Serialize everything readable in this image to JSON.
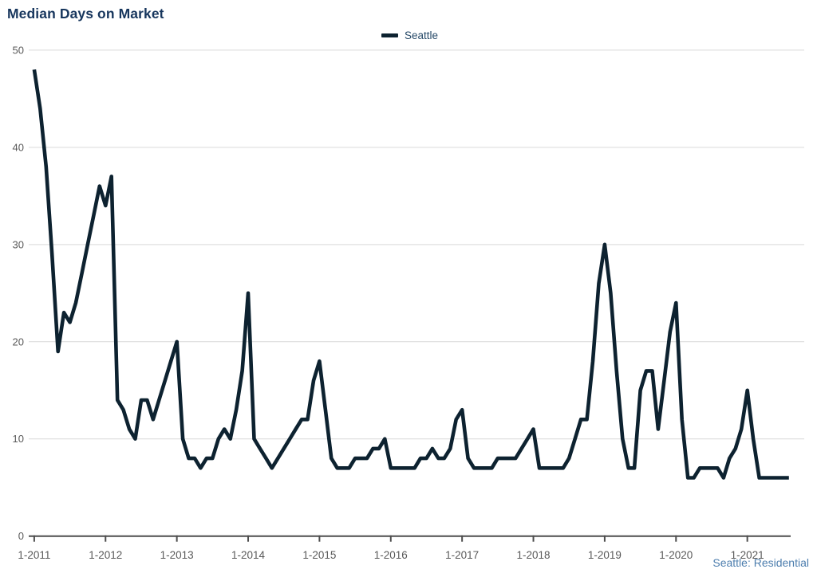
{
  "title": {
    "text": "Median Days on Market"
  },
  "legend": {
    "series_label": "Seattle",
    "swatch_color": "#0d2230",
    "position": "top-center"
  },
  "footer": {
    "label": "Seattle: Residential",
    "color": "#4d7eae"
  },
  "axis": {
    "y_tick_labels": [
      "0",
      "10",
      "20",
      "30",
      "40",
      "50"
    ],
    "x_tick_labels": [
      "1-2011",
      "1-2012",
      "1-2013",
      "1-2014",
      "1-2015",
      "1-2016",
      "1-2017",
      "1-2018",
      "1-2019",
      "1-2020",
      "1-2021"
    ],
    "label_color": "#595959",
    "gridline_color": "#d9d9d9",
    "axis_line_color": "#4d4d4d"
  },
  "chart_data": {
    "type": "line",
    "title": "Median Days on Market",
    "xlabel": "",
    "ylabel": "",
    "ylim": [
      0,
      50
    ],
    "y_ticks": [
      0,
      10,
      20,
      30,
      40,
      50
    ],
    "grid": "horizontal",
    "legend_position": "top-center",
    "line_color": "#0d2230",
    "x_tick_labels": [
      "1-2011",
      "1-2012",
      "1-2013",
      "1-2014",
      "1-2015",
      "1-2016",
      "1-2017",
      "1-2018",
      "1-2019",
      "1-2020",
      "1-2021"
    ],
    "series": [
      {
        "name": "Seattle",
        "start_month": "2011-01",
        "end_month": "2021-08",
        "frequency": "monthly",
        "values": [
          48,
          44,
          38,
          29,
          19,
          23,
          22,
          24,
          27,
          30,
          33,
          36,
          34,
          37,
          14,
          13,
          11,
          10,
          14,
          14,
          12,
          14,
          16,
          18,
          20,
          10,
          8,
          8,
          7,
          8,
          8,
          10,
          11,
          10,
          13,
          17,
          25,
          10,
          9,
          8,
          7,
          8,
          9,
          10,
          11,
          12,
          12,
          16,
          18,
          13,
          8,
          7,
          7,
          7,
          8,
          8,
          8,
          9,
          9,
          10,
          7,
          7,
          7,
          7,
          7,
          8,
          8,
          9,
          8,
          8,
          9,
          12,
          13,
          8,
          7,
          7,
          7,
          7,
          8,
          8,
          8,
          8,
          9,
          10,
          11,
          7,
          7,
          7,
          7,
          7,
          8,
          10,
          12,
          12,
          18,
          26,
          30,
          25,
          17,
          10,
          7,
          7,
          15,
          17,
          17,
          11,
          16,
          21,
          24,
          12,
          6,
          6,
          7,
          7,
          7,
          7,
          6,
          8,
          9,
          11,
          15,
          10,
          6,
          6,
          6,
          6,
          6,
          6
        ]
      }
    ]
  }
}
